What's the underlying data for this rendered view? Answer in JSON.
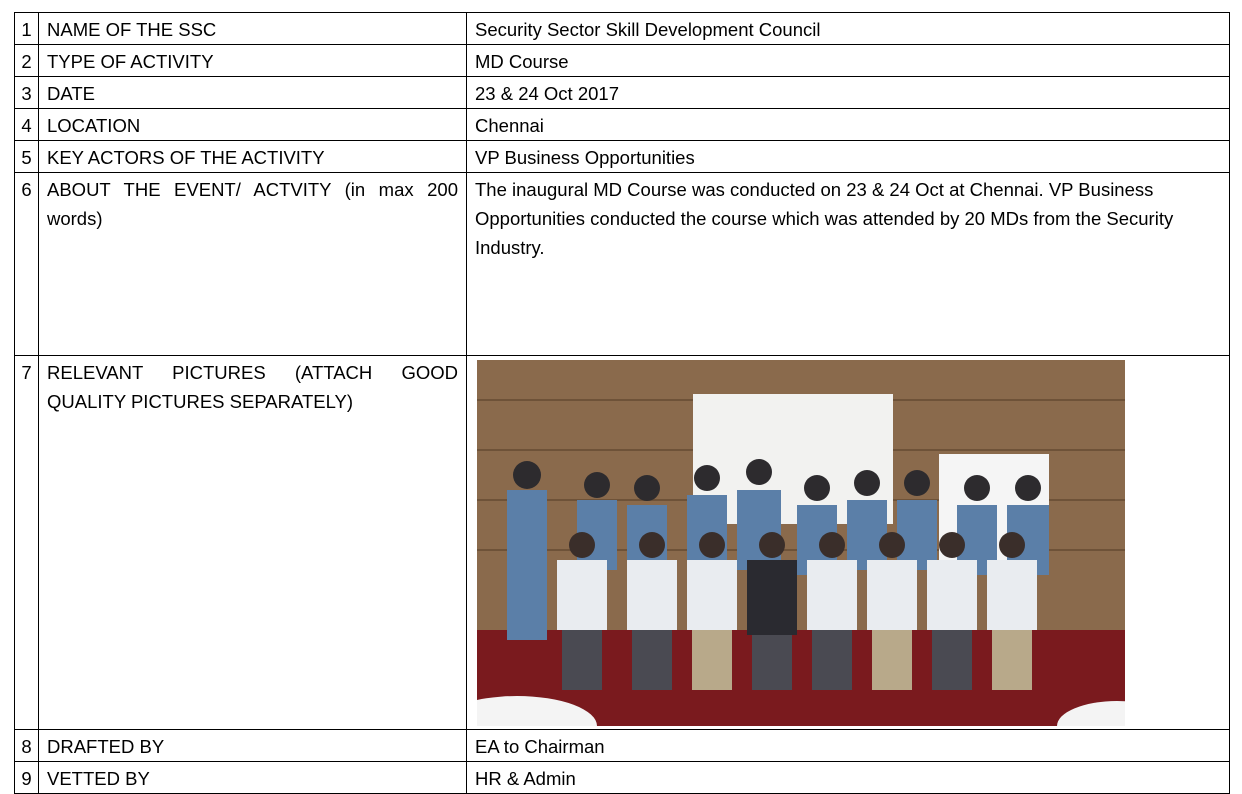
{
  "table": {
    "rows": [
      {
        "number": "1",
        "label": "NAME OF THE SSC",
        "value": "Security Sector Skill Development Council"
      },
      {
        "number": "2",
        "label": "TYPE OF ACTIVITY",
        "value": "MD Course"
      },
      {
        "number": "3",
        "label": "DATE",
        "value": "23 & 24 Oct 2017"
      },
      {
        "number": "4",
        "label": "LOCATION",
        "value": "Chennai"
      },
      {
        "number": "5",
        "label": "KEY ACTORS OF THE ACTIVITY",
        "value": "VP Business Opportunities"
      },
      {
        "number": "6",
        "label": "ABOUT THE EVENT/ ACTVITY (in max 200 words)",
        "value": "The inaugural MD Course was conducted on 23 & 24 Oct at Chennai. VP Business Opportunities conducted the course which was attended by 20 MDs from the Security Industry."
      },
      {
        "number": "7",
        "label": "RELEVANT PICTURES (ATTACH GOOD QUALITY PICTURES SEPARATELY)"
      },
      {
        "number": "8",
        "label": "DRAFTED BY",
        "value": "EA to Chairman"
      },
      {
        "number": "9",
        "label": "VETTED BY",
        "value": "HR & Admin"
      }
    ]
  }
}
